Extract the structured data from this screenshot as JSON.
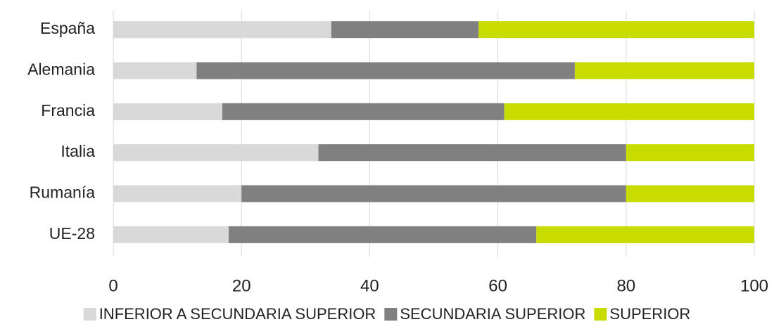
{
  "chart_data": {
    "type": "stacked_bar_horizontal",
    "categories": [
      "España",
      "Alemania",
      "Francia",
      "Italia",
      "Rumanía",
      "UE-28"
    ],
    "series": [
      {
        "name": "INFERIOR A SECUNDARIA SUPERIOR",
        "color": "#d9d9d9",
        "values": [
          34,
          13,
          17,
          32,
          20,
          18
        ]
      },
      {
        "name": "SECUNDARIA SUPERIOR",
        "color": "#808080",
        "values": [
          23,
          59,
          44,
          48,
          60,
          48
        ]
      },
      {
        "name": "SUPERIOR",
        "color": "#c8dc00",
        "values": [
          43,
          28,
          39,
          20,
          20,
          34
        ]
      }
    ],
    "xlim": [
      0,
      100
    ],
    "xticks": [
      0,
      20,
      40,
      60,
      80,
      100
    ],
    "grid": true,
    "legend": "bottom"
  }
}
